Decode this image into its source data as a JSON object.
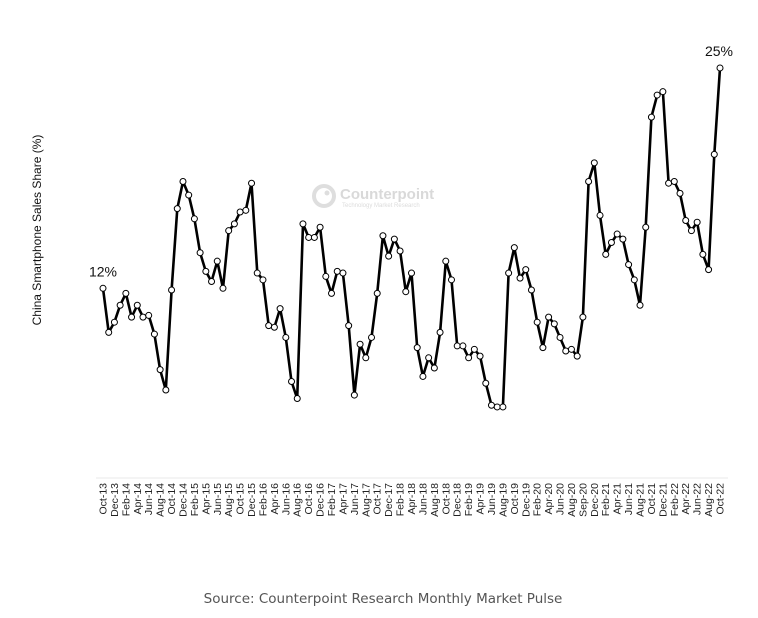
{
  "chart_data": {
    "type": "line",
    "title": "",
    "ylabel": "China Smartphone Sales Share (%)",
    "xlabel": "",
    "ylim": [
      0,
      26
    ],
    "grid": false,
    "legend": "none",
    "annotations": [
      {
        "label": "12%",
        "point_index": 0
      },
      {
        "label": "25%",
        "point_index": 108
      }
    ],
    "x_tick_labels": [
      "Oct-13",
      "Dec-13",
      "Feb-14",
      "Apr-14",
      "Jun-14",
      "Aug-14",
      "Oct-14",
      "Dec-14",
      "Feb-15",
      "Apr-15",
      "Jun-15",
      "Aug-15",
      "Oct-15",
      "Dec-15",
      "Feb-16",
      "Apr-16",
      "Jun-16",
      "Aug-16",
      "Oct-16",
      "Dec-16",
      "Feb-17",
      "Apr-17",
      "Jun-17",
      "Aug-17",
      "Oct-17",
      "Dec-17",
      "Feb-18",
      "Apr-18",
      "Jun-18",
      "Aug-18",
      "Oct-18",
      "Dec-18",
      "Feb-19",
      "Apr-19",
      "Jun-19",
      "Aug-19",
      "Oct-19",
      "Dec-19",
      "Feb-20",
      "Apr-20",
      "Jun-20",
      "Aug-20",
      "Sep-20",
      "Dec-20",
      "Feb-21",
      "Apr-21",
      "Jun-21",
      "Aug-21",
      "Oct-21",
      "Dec-21",
      "Feb-22",
      "Apr-22",
      "Jun-22",
      "Aug-22",
      "Oct-22"
    ],
    "series": [
      {
        "name": "China Smartphone Sales Share",
        "color": "#000000",
        "values": [
          12.0,
          9.4,
          10.0,
          11.0,
          11.7,
          10.3,
          11.0,
          10.3,
          10.4,
          9.3,
          7.2,
          6.0,
          11.9,
          16.7,
          18.3,
          17.5,
          16.1,
          14.1,
          13.0,
          12.4,
          13.6,
          12.0,
          15.4,
          15.8,
          16.5,
          16.6,
          18.2,
          12.9,
          12.5,
          9.8,
          9.7,
          10.8,
          9.1,
          6.5,
          5.5,
          15.8,
          15.0,
          15.0,
          15.6,
          12.7,
          11.7,
          13.0,
          12.9,
          9.8,
          5.7,
          8.7,
          7.9,
          9.1,
          11.7,
          15.1,
          13.9,
          14.9,
          14.2,
          11.8,
          12.9,
          8.5,
          6.8,
          7.9,
          7.3,
          9.4,
          13.6,
          12.5,
          8.6,
          8.6,
          7.9,
          8.4,
          8.0,
          6.4,
          5.1,
          5.0,
          5.0,
          12.9,
          14.4,
          12.6,
          13.1,
          11.9,
          10.0,
          8.5,
          10.3,
          9.9,
          9.1,
          8.3,
          8.4,
          8.0,
          10.3,
          18.3,
          19.4,
          16.3,
          14.0,
          14.7,
          15.2,
          14.9,
          13.4,
          12.5,
          11.0,
          15.6,
          22.1,
          23.4,
          23.6,
          18.2,
          18.3,
          17.6,
          16.0,
          15.4,
          15.9,
          14.0,
          13.1,
          19.9,
          25.0
        ]
      }
    ]
  },
  "watermark": {
    "name": "Counterpoint",
    "tagline": "Technology Market Research"
  },
  "source": "Source: Counterpoint Research Monthly Market Pulse"
}
